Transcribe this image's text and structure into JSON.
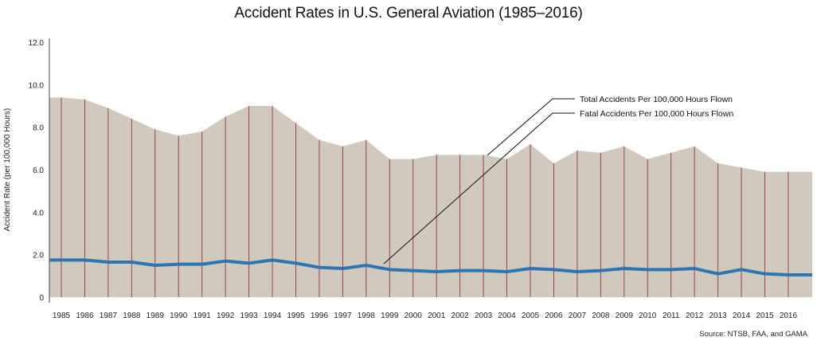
{
  "chart_data": {
    "type": "area",
    "title": "Accident Rates in U.S. General Aviation (1985–2016)",
    "xlabel": "",
    "ylabel": "Accident Rate (per 100,000 Hours)",
    "ylim": [
      0,
      12
    ],
    "y_ticks": [
      "0",
      "2.0",
      "4.0",
      "6.0",
      "8.0",
      "10.0",
      "12.0"
    ],
    "categories": [
      "1985",
      "1986",
      "1987",
      "1988",
      "1989",
      "1990",
      "1991",
      "1992",
      "1993",
      "1994",
      "1995",
      "1996",
      "1997",
      "1998",
      "1999",
      "2000",
      "2001",
      "2002",
      "2003",
      "2004",
      "2005",
      "2006",
      "2007",
      "2008",
      "2009",
      "2010",
      "2011",
      "2012",
      "2013",
      "2014",
      "2015",
      "2016"
    ],
    "series": [
      {
        "name": "Total Accidents Per 100,000 Hours Flown",
        "style": "filled area",
        "color": "#d2c9be",
        "values": [
          9.4,
          9.3,
          8.9,
          8.4,
          7.9,
          7.6,
          7.8,
          8.5,
          9.0,
          9.0,
          8.2,
          7.4,
          7.1,
          7.4,
          6.5,
          6.5,
          6.7,
          6.7,
          6.7,
          6.5,
          7.2,
          6.3,
          6.9,
          6.8,
          7.1,
          6.5,
          6.8,
          7.1,
          6.3,
          6.1,
          5.9,
          5.9
        ]
      },
      {
        "name": "Fatal Accidents Per 100,000 Hours Flown",
        "style": "line",
        "color": "#2e75b6",
        "values": [
          1.75,
          1.75,
          1.65,
          1.65,
          1.5,
          1.55,
          1.55,
          1.7,
          1.6,
          1.75,
          1.6,
          1.4,
          1.35,
          1.5,
          1.3,
          1.25,
          1.2,
          1.25,
          1.25,
          1.2,
          1.35,
          1.3,
          1.2,
          1.25,
          1.35,
          1.3,
          1.3,
          1.35,
          1.1,
          1.3,
          1.1,
          1.05
        ]
      }
    ],
    "annotations": [
      {
        "text": "Total Accidents Per 100,000 Hours Flown",
        "target_series": "Total Accidents Per 100,000 Hours Flown"
      },
      {
        "text": "Fatal Accidents Per 100,000 Hours Flown",
        "target_series": "Fatal Accidents Per 100,000 Hours Flown"
      }
    ],
    "gridline_color": "#8b3a42",
    "source": "Source: NTSB, FAA, and GAMA"
  }
}
